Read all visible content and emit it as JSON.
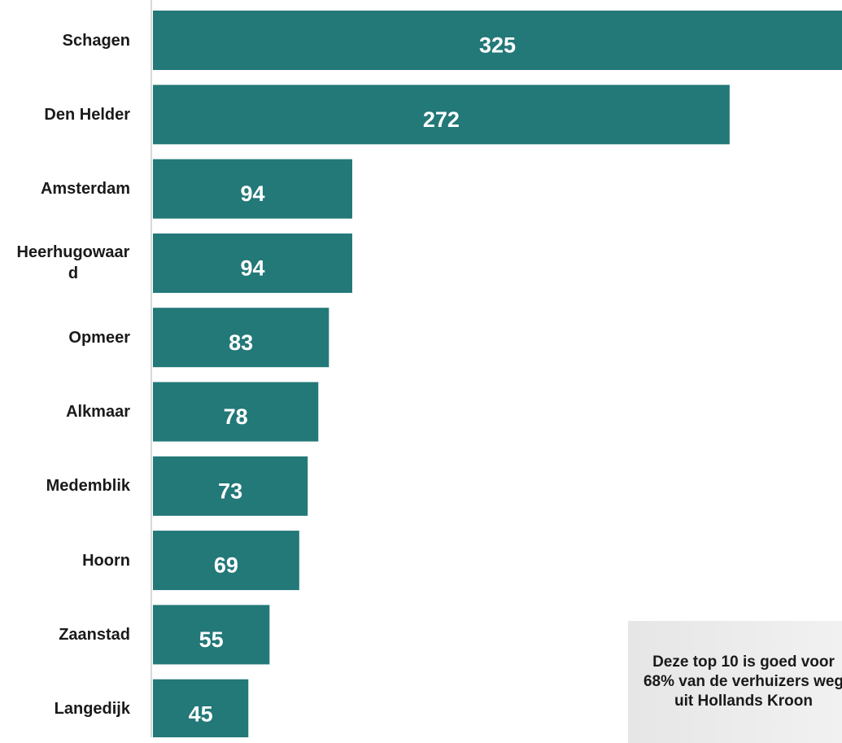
{
  "chart_data": {
    "type": "bar",
    "orientation": "horizontal",
    "categories": [
      "Schagen",
      "Den Helder",
      "Amsterdam",
      "Heerhugowaard",
      "Opmeer",
      "Alkmaar",
      "Medemblik",
      "Hoorn",
      "Zaanstad",
      "Langedijk"
    ],
    "values": [
      325,
      272,
      94,
      94,
      83,
      78,
      73,
      69,
      55,
      45
    ],
    "color": "#237878",
    "xlim": [
      0,
      325
    ],
    "annotation": "Deze top 10 is goed voor 68% van de verhuizers weg uit Hollands Kroon"
  }
}
